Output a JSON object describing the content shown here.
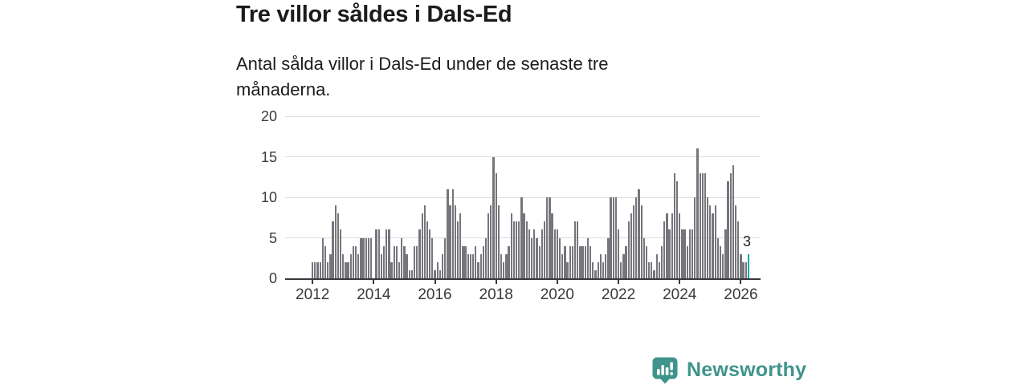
{
  "chart": {
    "title": "Tre villor såldes i Dals-Ed",
    "subtitle": "Antal sålda villor i Dals-Ed under de senaste tre månaderna."
  },
  "chart_data": {
    "type": "bar",
    "title": "Tre villor såldes i Dals-Ed",
    "subtitle": "Antal sålda villor i Dals-Ed under de senaste tre månaderna.",
    "x_start": "2012-01",
    "frequency": "monthly",
    "values": [
      2,
      2,
      2,
      2,
      5,
      4,
      2,
      3,
      7,
      9,
      8,
      6,
      3,
      2,
      2,
      3,
      4,
      4,
      3,
      5,
      5,
      5,
      5,
      5,
      0,
      6,
      6,
      3,
      4,
      6,
      6,
      2,
      4,
      4,
      2,
      5,
      4,
      3,
      1,
      1,
      4,
      4,
      6,
      8,
      9,
      7,
      6,
      5,
      1,
      2,
      1,
      3,
      5,
      11,
      9,
      11,
      9,
      7,
      8,
      4,
      4,
      3,
      3,
      3,
      4,
      2,
      3,
      4,
      5,
      8,
      9,
      15,
      13,
      9,
      3,
      2,
      3,
      4,
      8,
      7,
      7,
      7,
      10,
      8,
      7,
      6,
      5,
      6,
      5,
      4,
      6,
      7,
      10,
      10,
      8,
      6,
      6,
      5,
      3,
      4,
      2,
      4,
      4,
      7,
      7,
      4,
      4,
      4,
      5,
      4,
      2,
      1,
      2,
      3,
      2,
      3,
      5,
      10,
      10,
      10,
      6,
      2,
      3,
      4,
      7,
      8,
      9,
      10,
      11,
      9,
      5,
      4,
      2,
      2,
      1,
      3,
      2,
      4,
      7,
      8,
      6,
      8,
      13,
      12,
      8,
      6,
      6,
      4,
      6,
      6,
      10,
      16,
      13,
      13,
      13,
      10,
      9,
      8,
      9,
      5,
      4,
      3,
      6,
      12,
      13,
      14,
      9,
      7,
      3,
      2,
      2,
      3
    ],
    "ylim": [
      0,
      20
    ],
    "yticks": [
      0,
      5,
      10,
      15,
      20
    ],
    "xticks": [
      "2012",
      "2014",
      "2016",
      "2018",
      "2020",
      "2022",
      "2024",
      "2026"
    ],
    "grid": "horizontal",
    "legend": "none",
    "bar_color": "#75757c",
    "highlight_color": "#0aa79e",
    "highlight_last_bar": true,
    "highlight_value_label": "3"
  },
  "branding": {
    "name": "Newsworthy",
    "color": "#3f948d"
  }
}
